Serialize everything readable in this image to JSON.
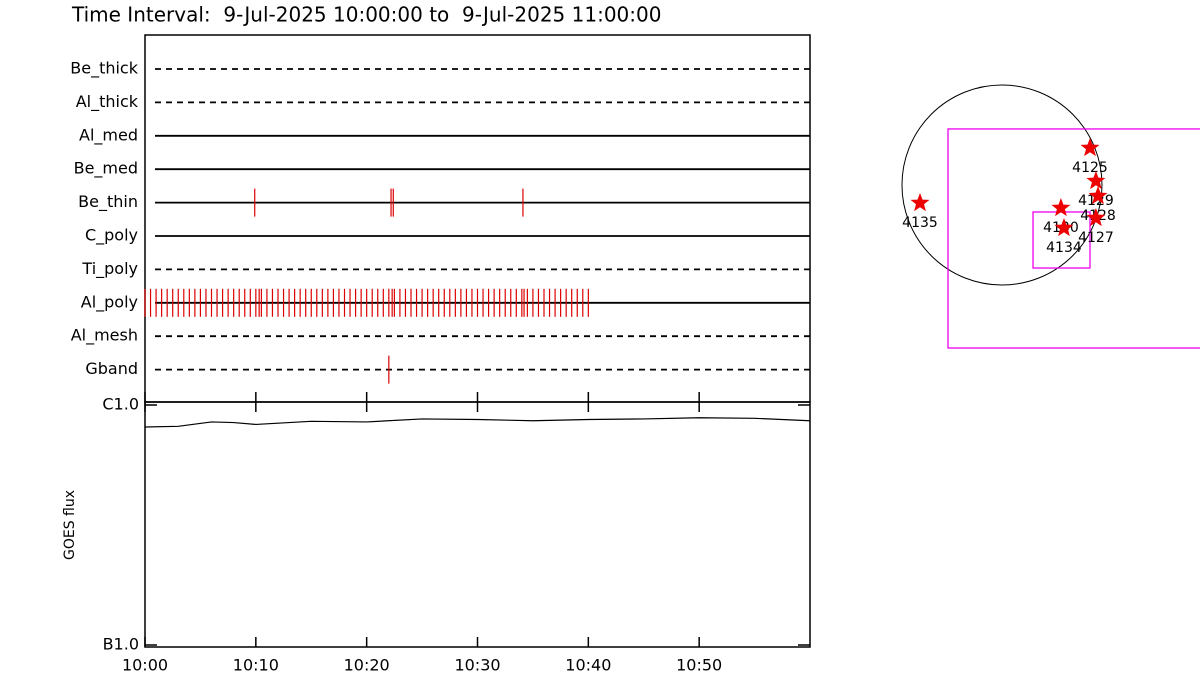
{
  "chart_data": [
    {
      "type": "timeline",
      "title": "Time Interval:  9-Jul-2025 10:00:00 to  9-Jul-2025 11:00:00",
      "rows": [
        {
          "name": "Be_thick",
          "style": "dashed",
          "events": []
        },
        {
          "name": "Al_thick",
          "style": "dashed",
          "events": []
        },
        {
          "name": "Al_med",
          "style": "solid",
          "events": []
        },
        {
          "name": "Be_med",
          "style": "solid",
          "events": []
        },
        {
          "name": "Be_thin",
          "style": "solid",
          "events": [
            9.9,
            22.2,
            22.4,
            34.1
          ]
        },
        {
          "name": "C_poly",
          "style": "solid",
          "events": []
        },
        {
          "name": "Ti_poly",
          "style": "dashed",
          "events": []
        },
        {
          "name": "Al_poly",
          "style": "solid",
          "events": [
            0,
            0.5,
            1,
            1.5,
            2,
            2.5,
            3,
            3.5,
            4,
            4.5,
            5,
            5.5,
            6,
            6.5,
            7,
            7.5,
            8,
            8.5,
            9,
            9.5,
            10,
            10.3,
            10.5,
            11,
            11.5,
            12,
            12.5,
            13,
            13.5,
            14,
            14.5,
            15,
            15.5,
            16,
            16.5,
            17,
            17.5,
            18,
            18.5,
            19,
            19.5,
            20,
            20.5,
            21,
            21.5,
            22,
            22.3,
            22.5,
            23,
            23.5,
            24,
            24.5,
            25,
            25.5,
            26,
            26.5,
            27,
            27.5,
            28,
            28.5,
            29,
            29.5,
            30,
            30.5,
            31,
            31.5,
            32,
            32.5,
            33,
            33.5,
            34,
            34.2,
            34.5,
            35,
            35.5,
            36,
            36.5,
            37,
            37.5,
            38,
            38.5,
            39,
            39.5,
            40
          ]
        },
        {
          "name": "Al_mesh",
          "style": "dashed",
          "events": []
        },
        {
          "name": "Gband",
          "style": "dashed",
          "events": [
            22.0
          ]
        }
      ],
      "event_color": "#dd0000",
      "xlim": [
        0,
        60
      ]
    },
    {
      "type": "line",
      "ylabel": "GOES flux",
      "x": [
        0,
        3,
        6,
        8,
        10,
        12,
        15,
        20,
        25,
        30,
        35,
        40,
        45,
        50,
        55,
        60
      ],
      "values": [
        8.1e-07,
        8.15e-07,
        8.5e-07,
        8.45e-07,
        8.3e-07,
        8.4e-07,
        8.55e-07,
        8.5e-07,
        8.75e-07,
        8.7e-07,
        8.6e-07,
        8.7e-07,
        8.75e-07,
        8.85e-07,
        8.8e-07,
        8.6e-07
      ],
      "color": "#000000",
      "log_y": true,
      "xlim": [
        0,
        60
      ],
      "xticks": [
        {
          "value": 0,
          "label": "10:00"
        },
        {
          "value": 10,
          "label": "10:10"
        },
        {
          "value": 20,
          "label": "10:20"
        },
        {
          "value": 30,
          "label": "10:30"
        },
        {
          "value": 40,
          "label": "10:40"
        },
        {
          "value": 50,
          "label": "10:50"
        }
      ],
      "ylim": [
        1e-07,
        1e-06
      ],
      "yticks": [
        {
          "value": 1e-06,
          "label": "C1.0"
        },
        {
          "value": 1e-07,
          "label": "B1.0"
        }
      ]
    },
    {
      "type": "map",
      "xlim": [
        -1555,
        1901
      ],
      "ylim": [
        -2064,
        1776
      ],
      "limb_radius": 960,
      "box_color": "#ee00ee",
      "boxes": [
        {
          "x": [
            -518,
            2200
          ],
          "y": [
            -1565,
            538
          ]
        },
        {
          "x": [
            298,
            845
          ],
          "y": [
            -797,
            -259
          ]
        }
      ],
      "star_color": "#ee0000",
      "regions": [
        {
          "label": "4135",
          "x": -787,
          "y": -173
        },
        {
          "label": "4125",
          "x": 845,
          "y": 355
        },
        {
          "label": "4129",
          "x": 902,
          "y": 38
        },
        {
          "label": "4128",
          "x": 922,
          "y": -106
        },
        {
          "label": "4130",
          "x": 566,
          "y": -221
        },
        {
          "label": "4134",
          "x": 595,
          "y": -413
        },
        {
          "label": "4127",
          "x": 902,
          "y": -317
        }
      ]
    }
  ]
}
